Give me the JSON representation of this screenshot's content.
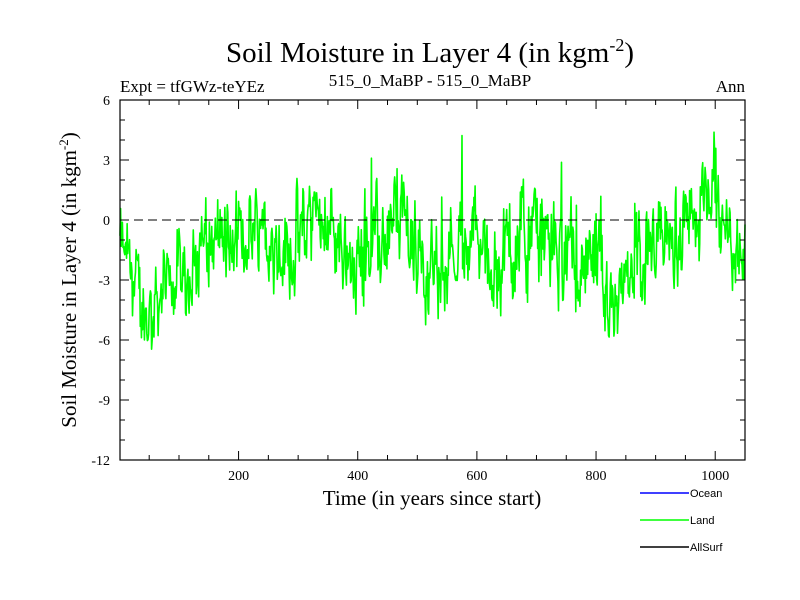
{
  "chart_data": {
    "type": "line",
    "title": "Soil Moisture in Layer 4 (in kgm",
    "title_sup": "-2",
    "title_close": ")",
    "subtitle_left": "Expt = tfGWz-teYEz",
    "subtitle_center": "515_0_MaBP - 515_0_MaBP",
    "subtitle_right": "Ann",
    "xlabel": "Time (in years since start)",
    "ylabel": "Soil Moisture in Layer 4 (in kgm",
    "ylabel_sup": "-2",
    "ylabel_close": ")",
    "xlim": [
      1,
      1050
    ],
    "ylim": [
      -12,
      6
    ],
    "xticks": [
      200,
      400,
      600,
      800,
      1000
    ],
    "yticks": [
      6,
      3,
      0,
      -3,
      -6,
      -9,
      -12
    ],
    "xtick_labels": [
      "200",
      "400",
      "600",
      "800",
      "1000"
    ],
    "ytick_labels": [
      "6",
      "3",
      "0",
      "-3",
      "-6",
      "-9",
      "-12"
    ],
    "zero_line": 0,
    "series": [
      {
        "name": "Land",
        "color": "#00ff00",
        "x": [
          1,
          25,
          35,
          45,
          60,
          80,
          95,
          110,
          130,
          150,
          170,
          190,
          210,
          230,
          245,
          260,
          280,
          300,
          320,
          340,
          360,
          380,
          400,
          420,
          440,
          460,
          470,
          490,
          510,
          530,
          550,
          570,
          590,
          610,
          630,
          650,
          670,
          690,
          710,
          730,
          750,
          770,
          790,
          810,
          828,
          845,
          870,
          890,
          910,
          930,
          950,
          970,
          990,
          1010,
          1030,
          1050
        ],
        "values": [
          -1.5,
          -3.0,
          -4.0,
          -5.0,
          -4.0,
          -3.5,
          -2.5,
          -3.0,
          -2.0,
          -1.0,
          -1.0,
          -1.5,
          -1.0,
          0.0,
          0.5,
          -1.0,
          -1.5,
          -1.0,
          0.0,
          0.5,
          -0.5,
          -1.5,
          -2.0,
          -1.0,
          -1.5,
          0.0,
          0.5,
          -1.0,
          -2.0,
          -2.5,
          -1.5,
          -1.0,
          -0.5,
          -1.5,
          -2.0,
          -1.5,
          -1.0,
          -1.0,
          -0.5,
          -1.5,
          -2.0,
          -2.0,
          -2.5,
          -3.0,
          -4.0,
          -3.0,
          -2.0,
          -2.5,
          -1.5,
          -1.0,
          -0.5,
          0.5,
          1.0,
          0.0,
          -1.5,
          -1.0
        ]
      },
      {
        "name": "Ocean",
        "color": "#0000ff",
        "x": [],
        "values": []
      },
      {
        "name": "AllSurf",
        "color": "#000000",
        "x": [],
        "values": []
      }
    ],
    "legend": {
      "placement": "bottom-right",
      "entries": [
        {
          "label": "Ocean",
          "color": "#0000ff"
        },
        {
          "label": "Land",
          "color": "#00ff00"
        },
        {
          "label": "AllSurf",
          "color": "#000000"
        }
      ]
    }
  }
}
